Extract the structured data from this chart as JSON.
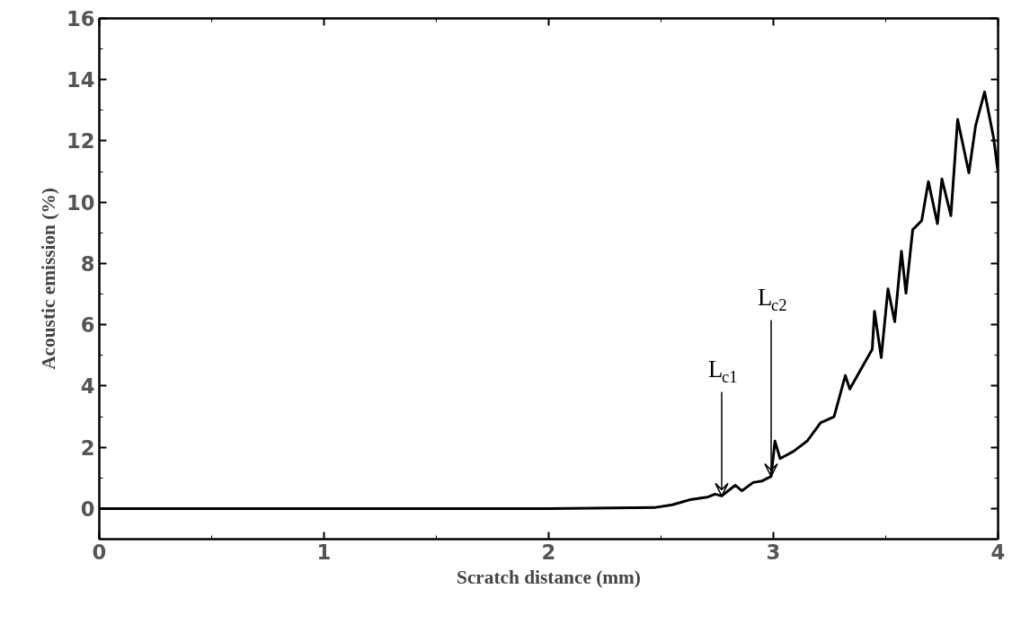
{
  "chart_data": {
    "type": "line",
    "xlabel": "Scratch distance (mm)",
    "ylabel": "Acoustic emission (%)",
    "xlim": [
      0,
      4
    ],
    "ylim": [
      -1,
      16
    ],
    "xticks": [
      0,
      1,
      2,
      3,
      4
    ],
    "yticks": [
      0,
      2,
      4,
      6,
      8,
      10,
      12,
      14,
      16
    ],
    "grid": false,
    "marker": "none",
    "line_style": "solid",
    "series": [
      {
        "color": "#000000",
        "x": [
          0,
          1,
          2,
          2.47,
          2.55,
          2.63,
          2.71,
          2.74,
          2.77,
          2.83,
          2.86,
          2.91,
          2.95,
          2.99,
          3.007,
          3.03,
          3.09,
          3.15,
          3.21,
          3.27,
          3.32,
          3.34,
          3.44,
          3.45,
          3.48,
          3.51,
          3.54,
          3.57,
          3.59,
          3.62,
          3.66,
          3.69,
          3.73,
          3.75,
          3.79,
          3.82,
          3.87,
          3.9,
          3.94,
          3.98,
          4.0
        ],
        "values": [
          0,
          0,
          0,
          0.03,
          0.12,
          0.29,
          0.38,
          0.47,
          0.41,
          0.76,
          0.58,
          0.85,
          0.9,
          1.05,
          2.2,
          1.63,
          1.87,
          2.2,
          2.8,
          3.0,
          4.34,
          3.9,
          5.2,
          6.44,
          4.93,
          7.17,
          6.1,
          8.4,
          7.03,
          9.1,
          9.4,
          10.67,
          9.3,
          10.76,
          9.56,
          12.7,
          10.96,
          12.5,
          13.6,
          12.1,
          10.96
        ]
      }
    ],
    "annotations": [
      {
        "text": "L$_{c1}$",
        "x": 2.77,
        "y": 0.41
      },
      {
        "text": "L$_{c2}$",
        "x": 2.99,
        "y": 1.05
      }
    ]
  }
}
